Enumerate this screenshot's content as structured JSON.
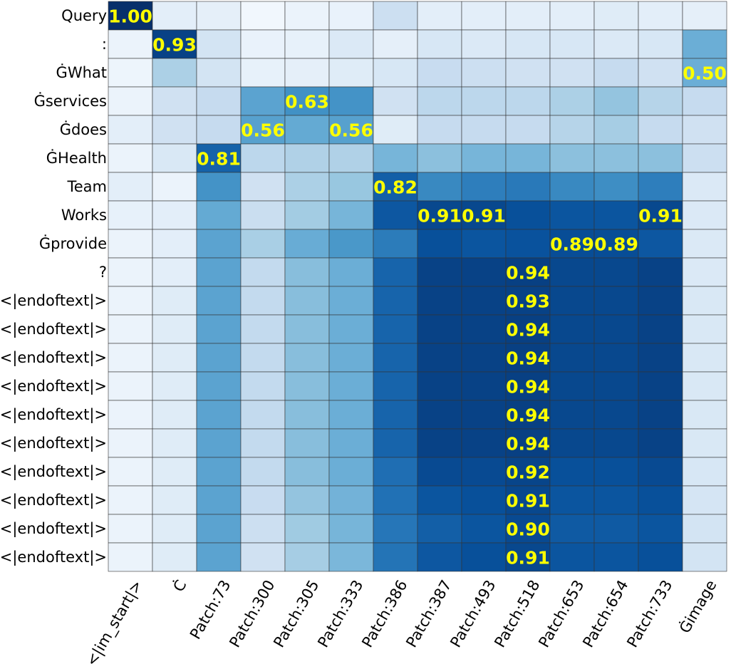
{
  "chart_data": {
    "type": "heatmap",
    "title": "",
    "xlabel": "",
    "ylabel": "",
    "colormap": "Blues",
    "value_range": [
      0,
      1
    ],
    "highlight_color": "#ffff00",
    "rows": [
      "Query",
      ":",
      "ĠWhat",
      "Ġservices",
      "Ġdoes",
      "ĠHealth",
      "Team",
      "Works",
      "Ġprovide",
      "?",
      "<|endoftext|>",
      "<|endoftext|>",
      "<|endoftext|>",
      "<|endoftext|>",
      "<|endoftext|>",
      "<|endoftext|>",
      "<|endoftext|>",
      "<|endoftext|>",
      "<|endoftext|>",
      "<|endoftext|>"
    ],
    "columns": [
      "<|im_start|>",
      "Ċ",
      "Patch:73",
      "Patch:300",
      "Patch:305",
      "Patch:333",
      "Patch:386",
      "Patch:387",
      "Patch:493",
      "Patch:518",
      "Patch:653",
      "Patch:654",
      "Patch:733",
      "Ġimage"
    ],
    "values": [
      [
        1.0,
        0.1,
        0.09,
        0.03,
        0.06,
        0.07,
        0.22,
        0.1,
        0.1,
        0.1,
        0.1,
        0.12,
        0.1,
        0.09
      ],
      [
        0.06,
        0.93,
        0.18,
        0.07,
        0.08,
        0.14,
        0.09,
        0.16,
        0.14,
        0.16,
        0.16,
        0.14,
        0.16,
        0.5
      ],
      [
        0.05,
        0.33,
        0.18,
        0.08,
        0.09,
        0.12,
        0.16,
        0.24,
        0.22,
        0.2,
        0.2,
        0.25,
        0.2,
        0.5
      ],
      [
        0.06,
        0.2,
        0.25,
        0.55,
        0.63,
        0.62,
        0.2,
        0.28,
        0.28,
        0.28,
        0.33,
        0.4,
        0.3,
        0.25
      ],
      [
        0.1,
        0.2,
        0.25,
        0.56,
        0.52,
        0.56,
        0.12,
        0.25,
        0.25,
        0.25,
        0.3,
        0.35,
        0.25,
        0.2
      ],
      [
        0.06,
        0.15,
        0.81,
        0.28,
        0.32,
        0.32,
        0.47,
        0.42,
        0.47,
        0.47,
        0.42,
        0.42,
        0.42,
        0.22
      ],
      [
        0.1,
        0.06,
        0.62,
        0.2,
        0.33,
        0.39,
        0.82,
        0.66,
        0.7,
        0.72,
        0.66,
        0.64,
        0.7,
        0.14
      ],
      [
        0.08,
        0.1,
        0.52,
        0.23,
        0.36,
        0.47,
        0.85,
        0.91,
        0.91,
        0.88,
        0.86,
        0.86,
        0.91,
        0.14
      ],
      [
        0.06,
        0.1,
        0.55,
        0.34,
        0.51,
        0.6,
        0.71,
        0.88,
        0.86,
        0.87,
        0.89,
        0.89,
        0.85,
        0.14
      ],
      [
        0.06,
        0.1,
        0.55,
        0.26,
        0.43,
        0.5,
        0.8,
        0.93,
        0.93,
        0.94,
        0.91,
        0.91,
        0.93,
        0.14
      ],
      [
        0.06,
        0.12,
        0.55,
        0.26,
        0.43,
        0.5,
        0.8,
        0.93,
        0.93,
        0.93,
        0.91,
        0.91,
        0.93,
        0.15
      ],
      [
        0.06,
        0.12,
        0.55,
        0.26,
        0.43,
        0.5,
        0.8,
        0.93,
        0.93,
        0.94,
        0.91,
        0.91,
        0.93,
        0.15
      ],
      [
        0.06,
        0.12,
        0.55,
        0.26,
        0.43,
        0.5,
        0.8,
        0.93,
        0.93,
        0.94,
        0.91,
        0.91,
        0.93,
        0.15
      ],
      [
        0.06,
        0.12,
        0.55,
        0.26,
        0.43,
        0.5,
        0.8,
        0.93,
        0.93,
        0.94,
        0.91,
        0.91,
        0.93,
        0.15
      ],
      [
        0.06,
        0.12,
        0.55,
        0.26,
        0.43,
        0.5,
        0.8,
        0.93,
        0.93,
        0.94,
        0.91,
        0.91,
        0.93,
        0.15
      ],
      [
        0.06,
        0.12,
        0.55,
        0.26,
        0.43,
        0.5,
        0.8,
        0.93,
        0.93,
        0.94,
        0.91,
        0.91,
        0.93,
        0.15
      ],
      [
        0.06,
        0.12,
        0.55,
        0.26,
        0.43,
        0.5,
        0.76,
        0.9,
        0.9,
        0.92,
        0.88,
        0.88,
        0.9,
        0.16
      ],
      [
        0.06,
        0.12,
        0.55,
        0.24,
        0.4,
        0.48,
        0.75,
        0.86,
        0.88,
        0.91,
        0.86,
        0.86,
        0.88,
        0.17
      ],
      [
        0.06,
        0.12,
        0.55,
        0.22,
        0.37,
        0.47,
        0.73,
        0.82,
        0.86,
        0.9,
        0.84,
        0.84,
        0.86,
        0.18
      ],
      [
        0.06,
        0.12,
        0.55,
        0.2,
        0.35,
        0.46,
        0.74,
        0.85,
        0.88,
        0.91,
        0.86,
        0.86,
        0.88,
        0.18
      ]
    ],
    "annotations": [
      {
        "row": 0,
        "col": 0,
        "text": "1.00"
      },
      {
        "row": 1,
        "col": 1,
        "text": "0.93"
      },
      {
        "row": 2,
        "col": 13,
        "text": "0.50"
      },
      {
        "row": 3,
        "col": 4,
        "text": "0.63"
      },
      {
        "row": 4,
        "col": 3,
        "text": "0.56"
      },
      {
        "row": 4,
        "col": 5,
        "text": "0.56"
      },
      {
        "row": 5,
        "col": 2,
        "text": "0.81"
      },
      {
        "row": 6,
        "col": 6,
        "text": "0.82"
      },
      {
        "row": 7,
        "col": 7,
        "text": "0.91"
      },
      {
        "row": 7,
        "col": 8,
        "text": "0.91"
      },
      {
        "row": 7,
        "col": 12,
        "text": "0.91"
      },
      {
        "row": 8,
        "col": 10,
        "text": "0.89"
      },
      {
        "row": 8,
        "col": 11,
        "text": "0.89"
      },
      {
        "row": 9,
        "col": 9,
        "text": "0.94"
      },
      {
        "row": 10,
        "col": 9,
        "text": "0.93"
      },
      {
        "row": 11,
        "col": 9,
        "text": "0.94"
      },
      {
        "row": 12,
        "col": 9,
        "text": "0.94"
      },
      {
        "row": 13,
        "col": 9,
        "text": "0.94"
      },
      {
        "row": 14,
        "col": 9,
        "text": "0.94"
      },
      {
        "row": 15,
        "col": 9,
        "text": "0.94"
      },
      {
        "row": 16,
        "col": 9,
        "text": "0.92"
      },
      {
        "row": 17,
        "col": 9,
        "text": "0.91"
      },
      {
        "row": 18,
        "col": 9,
        "text": "0.90"
      },
      {
        "row": 19,
        "col": 9,
        "text": "0.91"
      }
    ]
  }
}
